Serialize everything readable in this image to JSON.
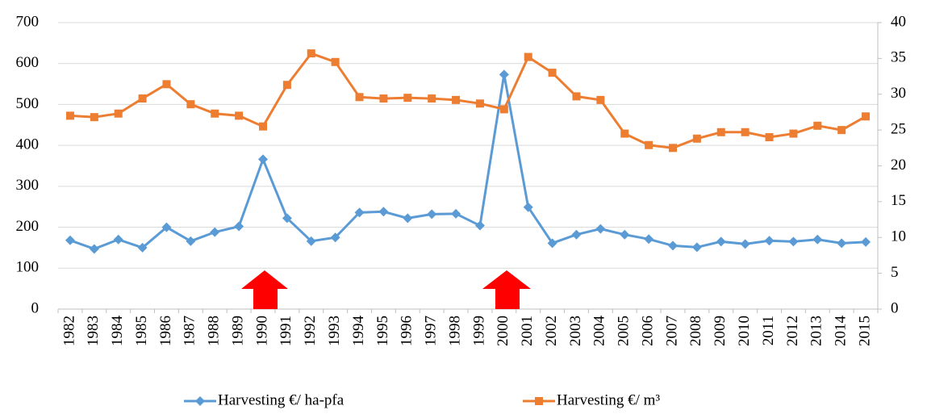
{
  "chart_data": {
    "type": "line",
    "categories": [
      "1982",
      "1983",
      "1984",
      "1985",
      "1986",
      "1987",
      "1988",
      "1989",
      "1990",
      "1991",
      "1992",
      "1993",
      "1994",
      "1995",
      "1996",
      "1997",
      "1998",
      "1999",
      "2000",
      "2001",
      "2002",
      "2003",
      "2004",
      "2005",
      "2006",
      "2007",
      "2008",
      "2009",
      "2010",
      "2011",
      "2012",
      "2013",
      "2014",
      "2015"
    ],
    "series": [
      {
        "name": "Harvesting €/ ha-pfa",
        "color": "#5b9bd5",
        "marker": "diamond",
        "values": [
          168,
          147,
          170,
          150,
          200,
          166,
          188,
          202,
          366,
          222,
          166,
          175,
          236,
          238,
          222,
          232,
          233,
          204,
          573,
          249,
          161,
          182,
          196,
          182,
          171,
          155,
          151,
          165,
          159,
          167,
          165,
          170,
          161,
          164
        ]
      },
      {
        "name": "Harvesting €/ m³",
        "color": "#ed7d31",
        "marker": "square",
        "axis": "y2",
        "values": [
          27.0,
          26.8,
          27.3,
          29.4,
          31.4,
          28.6,
          27.3,
          27.0,
          25.5,
          31.3,
          35.7,
          34.5,
          29.6,
          29.4,
          29.5,
          29.4,
          29.2,
          28.7,
          27.9,
          35.2,
          33.0,
          29.7,
          29.2,
          24.5,
          22.9,
          22.5,
          23.8,
          24.7,
          24.7,
          24.0,
          24.5,
          25.6,
          25.0,
          26.9
        ]
      }
    ],
    "ylim": [
      0,
      700
    ],
    "yticks": [
      0,
      100,
      200,
      300,
      400,
      500,
      600,
      700
    ],
    "y2lim": [
      0,
      40
    ],
    "y2ticks": [
      0,
      5,
      10,
      15,
      20,
      25,
      30,
      35,
      40
    ],
    "grid": true,
    "legend": "bottom"
  }
}
